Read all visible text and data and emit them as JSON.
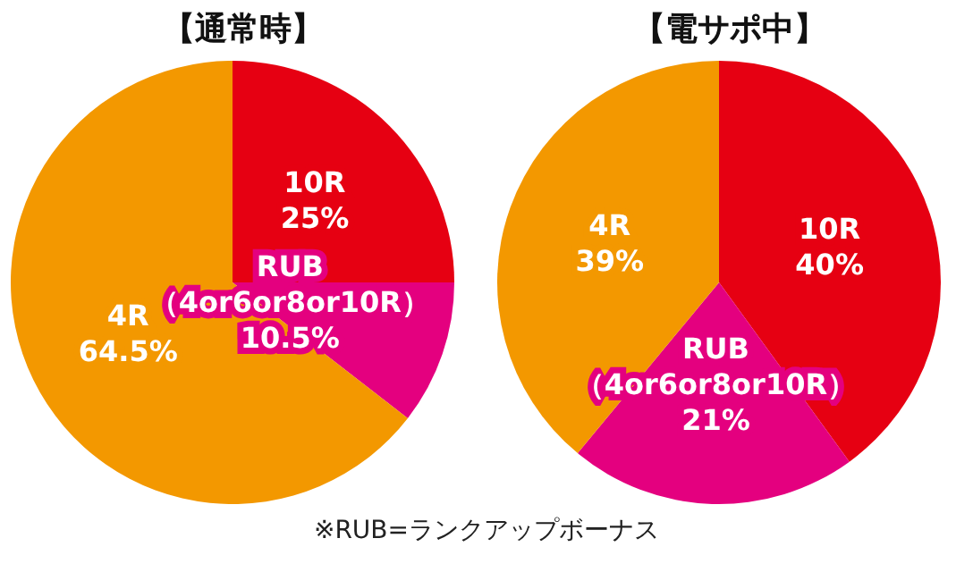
{
  "chart_data": [
    {
      "type": "pie",
      "title": "【通常時】",
      "categories": [
        "10R",
        "RUB\n（4or6or8or10R）",
        "4R"
      ],
      "values": [
        25,
        10.5,
        64.5
      ],
      "value_labels": [
        "25%",
        "10.5%",
        "64.5%"
      ],
      "colors": [
        "#e60012",
        "#e4007f",
        "#f39800"
      ],
      "annotations": [
        "※RUB=ランクアップボーナス"
      ]
    },
    {
      "type": "pie",
      "title": "【電サポ中】",
      "categories": [
        "10R",
        "RUB\n（4or6or8or10R）",
        "4R"
      ],
      "values": [
        40,
        21,
        39
      ],
      "value_labels": [
        "40%",
        "21%",
        "39%"
      ],
      "colors": [
        "#e60012",
        "#e4007f",
        "#f39800"
      ]
    }
  ]
}
